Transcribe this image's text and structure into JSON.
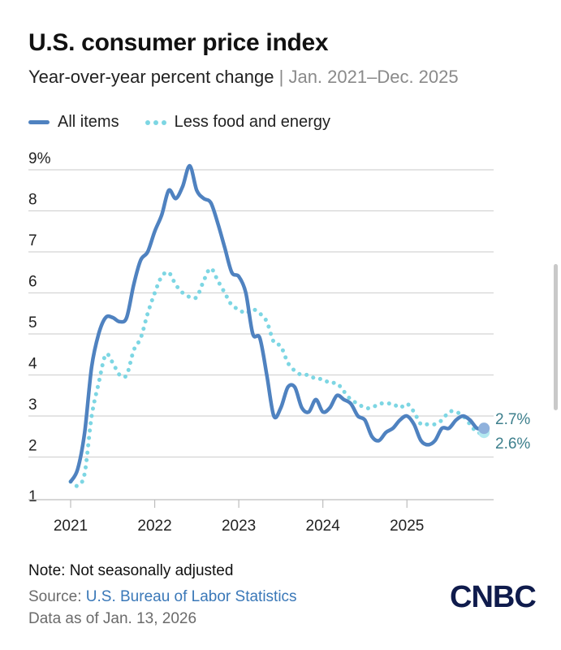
{
  "header": {
    "title": "U.S. consumer price index",
    "subtitle_main": "Year-over-year percent change",
    "subtitle_sep": "|",
    "subtitle_range": "Jan. 2021–Dec. 2025"
  },
  "legend": {
    "all_items": "All items",
    "core": "Less food and energy"
  },
  "footer": {
    "note": "Note: Not seasonally adjusted",
    "source_prefix": "Source: ",
    "source_link": "U.S. Bureau of Labor Statistics",
    "as_of": "Data as of Jan. 13, 2026",
    "logo_text": "CNBC"
  },
  "colors": {
    "all_items": "#4f82c0",
    "core": "#7dd6e3",
    "grid": "#d4d4d4",
    "end_label": "#3d7f8c"
  },
  "chart_data": {
    "type": "line",
    "x_start": "2021-01",
    "x_end": "2025-12",
    "x_tick_labels": [
      "2021",
      "2022",
      "2023",
      "2024",
      "2025"
    ],
    "y_tick_labels": [
      "9%",
      "8",
      "7",
      "6",
      "5",
      "4",
      "3",
      "2",
      "1"
    ],
    "y_ticks": [
      9,
      8,
      7,
      6,
      5,
      4,
      3,
      2,
      1
    ],
    "ylim": [
      1,
      9
    ],
    "grid": true,
    "legend_position": "top-left",
    "end_labels": {
      "all_items": "2.7%",
      "core": "2.6%"
    },
    "series": [
      {
        "name": "All items",
        "style": "solid",
        "values": [
          1.4,
          1.7,
          2.6,
          4.2,
          5.0,
          5.4,
          5.4,
          5.3,
          5.4,
          6.2,
          6.8,
          7.0,
          7.5,
          7.9,
          8.5,
          8.3,
          8.6,
          9.1,
          8.5,
          8.3,
          8.2,
          7.7,
          7.1,
          6.5,
          6.4,
          6.0,
          5.0,
          4.9,
          4.0,
          3.0,
          3.2,
          3.7,
          3.7,
          3.2,
          3.1,
          3.4,
          3.1,
          3.2,
          3.5,
          3.4,
          3.3,
          3.0,
          2.9,
          2.5,
          2.4,
          2.6,
          2.7,
          2.9,
          3.0,
          2.8,
          2.4,
          2.3,
          2.4,
          2.7,
          2.7,
          2.9,
          3.0,
          2.9,
          2.7,
          2.7
        ]
      },
      {
        "name": "Less food and energy",
        "style": "dotted",
        "values": [
          1.4,
          1.3,
          1.6,
          3.0,
          3.8,
          4.5,
          4.3,
          4.0,
          4.0,
          4.6,
          4.9,
          5.5,
          6.0,
          6.4,
          6.5,
          6.2,
          6.0,
          5.9,
          5.9,
          6.3,
          6.6,
          6.3,
          6.0,
          5.7,
          5.6,
          5.5,
          5.6,
          5.5,
          5.3,
          4.8,
          4.7,
          4.3,
          4.1,
          4.0,
          4.0,
          3.9,
          3.9,
          3.8,
          3.8,
          3.6,
          3.4,
          3.3,
          3.2,
          3.2,
          3.3,
          3.3,
          3.3,
          3.2,
          3.3,
          3.1,
          2.8,
          2.8,
          2.8,
          2.9,
          3.1,
          3.1,
          3.0,
          2.8,
          2.6,
          2.6
        ]
      }
    ]
  }
}
